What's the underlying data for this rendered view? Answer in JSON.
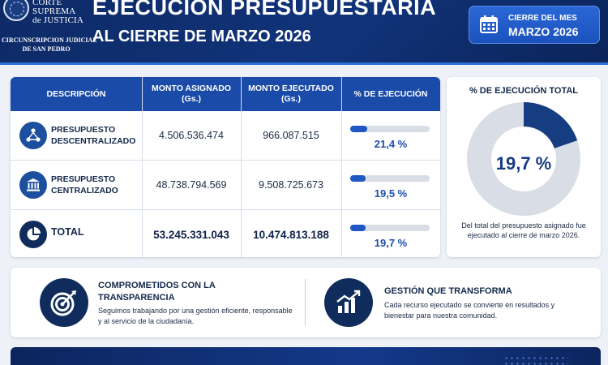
{
  "header": {
    "org_lines": [
      "CORTE",
      "SUPREMA",
      "de JUSTICIA"
    ],
    "org_sub_lines": [
      "CIRCUNSCRIPCION JUDICIAL",
      "DE SAN PEDRO"
    ],
    "title": "EJECUCION PRESUPUESTARIA",
    "subtitle": "AL CIERRE DE MARZO 2026",
    "month_label": "CIERRE DEL MES",
    "month_value": "MARZO 2026"
  },
  "table": {
    "columns": {
      "descripcion": "DESCRIPCIÓN",
      "asignado": "MONTO ASIGNADO\n(Gs.)",
      "ejecutado": "MONTO EJECUTADO\n(Gs.)",
      "porcentaje": "% DE EJECUCIÓN"
    },
    "rows": [
      {
        "label": "PRESUPUESTO DESCENTRALIZADO",
        "icon": "network-icon",
        "asignado": "4.506.536.474",
        "ejecutado": "966.087.515",
        "porcentaje": "21,4 %",
        "progress": 21.4
      },
      {
        "label": "PRESUPUESTO CENTRALIZADO",
        "icon": "building-icon",
        "asignado": "48.738.794.569",
        "ejecutado": "9.508.725.673",
        "porcentaje": "19,5 %",
        "progress": 19.5
      },
      {
        "label": "TOTAL",
        "icon": "pie-chart-icon",
        "asignado": "53.245.331.043",
        "ejecutado": "10.474.813.188",
        "porcentaje": "19,7 %",
        "progress": 19.7
      }
    ]
  },
  "summary": {
    "title": "% DE EJECUCIÓN TOTAL",
    "value": "19,7 %",
    "progress": 19.7,
    "note": "Del total del presupuesto asignado fue ejecutado al cierre de marzo 2026."
  },
  "info": [
    {
      "icon": "target-icon",
      "title": "COMPROMETIDOS CON LA TRANSPARENCIA",
      "text": "Seguimos trabajando por una gestión eficiente, responsable y al servicio de la ciudadanía."
    },
    {
      "icon": "growth-chart-icon",
      "title": "GESTIÓN QUE TRANSFORMA",
      "text": "Cada recurso ejecutado se convierte en resultados y bienestar para nuestra comunidad."
    }
  ],
  "colors": {
    "navy": "#0d2a66",
    "accent": "#1f57c4",
    "track": "#d9dee6"
  }
}
